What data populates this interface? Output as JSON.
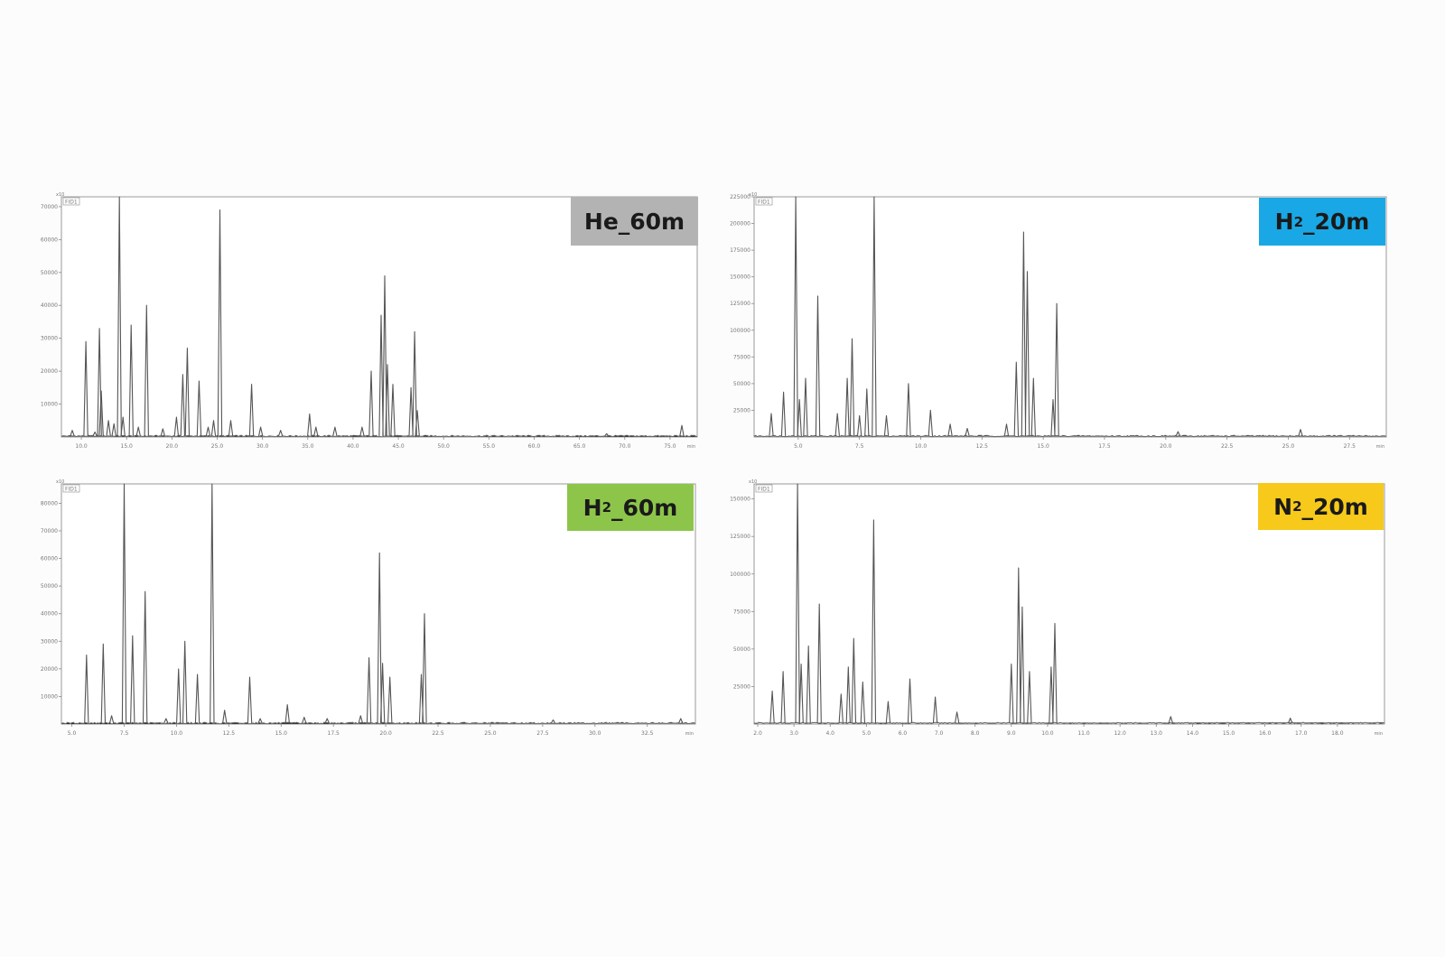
{
  "chart_data": [
    {
      "type": "line",
      "id": "p1",
      "label": {
        "main": "He_60m",
        "subscript": "",
        "suffix": "",
        "color": "#b3b3b3"
      },
      "detector_label": "FID1",
      "x_unit": "min",
      "y_multiplier": "x10",
      "xlim": [
        7.8,
        78.0
      ],
      "ylim": [
        0,
        73000
      ],
      "x_ticks": [
        "10.0",
        "15.0",
        "20.0",
        "25.0",
        "30.0",
        "35.0",
        "40.0",
        "45.0",
        "50.0",
        "55.0",
        "60.0",
        "65.0",
        "70.0",
        "75.0"
      ],
      "y_ticks": [
        "10000",
        "20000",
        "30000",
        "40000",
        "50000",
        "60000",
        "70000"
      ],
      "peaks": [
        [
          9.0,
          2000
        ],
        [
          10.5,
          29000
        ],
        [
          11.5,
          1500
        ],
        [
          12.0,
          33000
        ],
        [
          12.2,
          14000
        ],
        [
          13.0,
          5000
        ],
        [
          13.6,
          4000
        ],
        [
          14.2,
          74000
        ],
        [
          14.6,
          6000
        ],
        [
          15.5,
          34000
        ],
        [
          16.3,
          3000
        ],
        [
          17.2,
          40000
        ],
        [
          19.0,
          2500
        ],
        [
          20.5,
          6000
        ],
        [
          21.2,
          19000
        ],
        [
          21.7,
          27000
        ],
        [
          23.0,
          17000
        ],
        [
          24.0,
          3000
        ],
        [
          24.6,
          5000
        ],
        [
          25.3,
          69000
        ],
        [
          26.5,
          5000
        ],
        [
          28.8,
          16000
        ],
        [
          29.8,
          3000
        ],
        [
          32.0,
          2000
        ],
        [
          35.2,
          7000
        ],
        [
          35.9,
          3000
        ],
        [
          38.0,
          3000
        ],
        [
          41.0,
          3000
        ],
        [
          42.0,
          20000
        ],
        [
          43.1,
          37000
        ],
        [
          43.5,
          49000
        ],
        [
          43.8,
          22000
        ],
        [
          44.4,
          16000
        ],
        [
          46.4,
          15000
        ],
        [
          46.8,
          32000
        ],
        [
          47.1,
          8000
        ],
        [
          68.0,
          1000
        ],
        [
          76.3,
          3500
        ]
      ]
    },
    {
      "type": "line",
      "id": "p2",
      "label": {
        "main": "H",
        "subscript": "2",
        "suffix": "_20m",
        "color": "#19a8e5"
      },
      "detector_label": "FID1",
      "x_unit": "min",
      "y_multiplier": "x10",
      "xlim": [
        3.2,
        29.0
      ],
      "ylim": [
        0,
        225000
      ],
      "x_ticks": [
        "5.0",
        "7.5",
        "10.0",
        "12.5",
        "15.0",
        "17.5",
        "20.0",
        "22.5",
        "25.0",
        "27.5"
      ],
      "y_ticks": [
        "25000",
        "50000",
        "75000",
        "100000",
        "125000",
        "150000",
        "175000",
        "200000",
        "225000"
      ],
      "peaks": [
        [
          3.9,
          22000
        ],
        [
          4.4,
          42000
        ],
        [
          4.9,
          238000
        ],
        [
          5.05,
          35000
        ],
        [
          5.3,
          55000
        ],
        [
          5.8,
          132000
        ],
        [
          6.6,
          22000
        ],
        [
          7.0,
          55000
        ],
        [
          7.2,
          92000
        ],
        [
          7.5,
          20000
        ],
        [
          7.8,
          45000
        ],
        [
          8.1,
          238000
        ],
        [
          8.6,
          20000
        ],
        [
          9.5,
          50000
        ],
        [
          10.4,
          25000
        ],
        [
          11.2,
          12000
        ],
        [
          11.9,
          8000
        ],
        [
          13.5,
          12000
        ],
        [
          13.9,
          70000
        ],
        [
          14.2,
          192000
        ],
        [
          14.35,
          155000
        ],
        [
          14.6,
          55000
        ],
        [
          15.4,
          35000
        ],
        [
          15.55,
          125000
        ],
        [
          20.5,
          5000
        ],
        [
          25.5,
          7000
        ]
      ]
    },
    {
      "type": "line",
      "id": "p3",
      "label": {
        "main": "H",
        "subscript": "2",
        "suffix": "_60m",
        "color": "#8dc54b"
      },
      "detector_label": "FID1",
      "x_unit": "min",
      "y_multiplier": "x10",
      "xlim": [
        4.5,
        34.8
      ],
      "ylim": [
        0,
        87000
      ],
      "x_ticks": [
        "5.0",
        "7.5",
        "10.0",
        "12.5",
        "15.0",
        "17.5",
        "20.0",
        "22.5",
        "25.0",
        "27.5",
        "30.0",
        "32.5"
      ],
      "y_ticks": [
        "10000",
        "20000",
        "30000",
        "40000",
        "50000",
        "60000",
        "70000",
        "80000"
      ],
      "peaks": [
        [
          5.7,
          25000
        ],
        [
          6.5,
          29000
        ],
        [
          6.9,
          3000
        ],
        [
          7.5,
          90000
        ],
        [
          7.9,
          32000
        ],
        [
          8.5,
          48000
        ],
        [
          9.5,
          2000
        ],
        [
          10.1,
          20000
        ],
        [
          10.4,
          30000
        ],
        [
          11.0,
          18000
        ],
        [
          11.7,
          88000
        ],
        [
          12.3,
          5000
        ],
        [
          13.5,
          17000
        ],
        [
          14.0,
          2000
        ],
        [
          15.3,
          7000
        ],
        [
          16.1,
          2500
        ],
        [
          17.2,
          2000
        ],
        [
          18.8,
          3000
        ],
        [
          19.2,
          24000
        ],
        [
          19.7,
          62000
        ],
        [
          19.85,
          22000
        ],
        [
          20.2,
          17000
        ],
        [
          21.7,
          18000
        ],
        [
          21.85,
          40000
        ],
        [
          28.0,
          1500
        ],
        [
          34.1,
          2000
        ]
      ]
    },
    {
      "type": "line",
      "id": "p4",
      "label": {
        "main": "N",
        "subscript": "2",
        "suffix": "_20m",
        "color": "#f6c91b"
      },
      "detector_label": "FID1",
      "x_unit": "min",
      "y_multiplier": "x10",
      "xlim": [
        1.9,
        19.3
      ],
      "ylim": [
        0,
        160000
      ],
      "x_ticks": [
        "2.0",
        "3.0",
        "4.0",
        "5.0",
        "6.0",
        "7.0",
        "8.0",
        "9.0",
        "10.0",
        "11.0",
        "12.0",
        "13.0",
        "14.0",
        "15.0",
        "16.0",
        "17.0",
        "18.0"
      ],
      "y_ticks": [
        "25000",
        "50000",
        "75000",
        "100000",
        "125000",
        "150000"
      ],
      "peaks": [
        [
          2.4,
          22000
        ],
        [
          2.7,
          35000
        ],
        [
          3.1,
          172000
        ],
        [
          3.2,
          40000
        ],
        [
          3.4,
          52000
        ],
        [
          3.7,
          80000
        ],
        [
          4.3,
          20000
        ],
        [
          4.5,
          38000
        ],
        [
          4.65,
          57000
        ],
        [
          4.9,
          28000
        ],
        [
          5.2,
          136000
        ],
        [
          5.6,
          15000
        ],
        [
          6.2,
          30000
        ],
        [
          6.9,
          18000
        ],
        [
          7.5,
          8000
        ],
        [
          9.0,
          40000
        ],
        [
          9.2,
          104000
        ],
        [
          9.3,
          78000
        ],
        [
          9.5,
          35000
        ],
        [
          10.1,
          38000
        ],
        [
          10.2,
          67000
        ],
        [
          13.4,
          5000
        ],
        [
          16.7,
          4000
        ]
      ]
    }
  ]
}
